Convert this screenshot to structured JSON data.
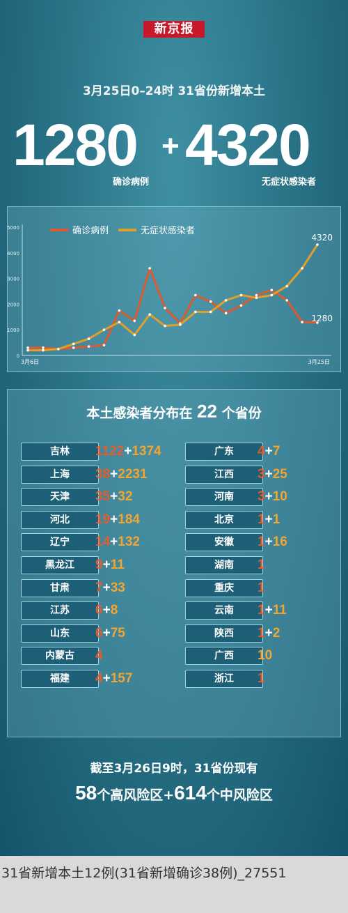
{
  "logo": "新京报",
  "headline": "3月25日0–24时   31省份新增本土",
  "summary": {
    "confirmed_value": "1280",
    "plus": "+",
    "asymptomatic_value": "4320",
    "confirmed_label": "确诊病例",
    "asymptomatic_label": "无症状感染者"
  },
  "chart_data": {
    "type": "line",
    "x_start_label": "3月6日",
    "x_end_label": "3月25日",
    "ylim": [
      0,
      5000
    ],
    "yticks": [
      "0",
      "1000",
      "2000",
      "3000",
      "4000",
      "5000"
    ],
    "legend": [
      "确诊病例",
      "无症状感染者"
    ],
    "legend_position": "top-left",
    "grid": false,
    "series": [
      {
        "name": "确诊病例",
        "color": "#dd5a2e",
        "values": [
          300,
          300,
          250,
          300,
          350,
          400,
          1750,
          1350,
          3400,
          1850,
          1250,
          2350,
          2100,
          1650,
          1950,
          2350,
          2550,
          2150,
          1300,
          1280
        ],
        "end_label": "1280"
      },
      {
        "name": "无症状感染者",
        "color": "#e0a028",
        "values": [
          200,
          200,
          250,
          450,
          650,
          1000,
          1300,
          800,
          1600,
          1150,
          1200,
          1700,
          1700,
          2150,
          2350,
          2250,
          2350,
          2700,
          3400,
          4320
        ],
        "end_label": "4320"
      }
    ]
  },
  "distribution": {
    "title_pre": "本土感染者分布在",
    "count": "22",
    "title_post": "个省份",
    "left": [
      {
        "name": "吉林",
        "c": "1122",
        "a": "1374"
      },
      {
        "name": "上海",
        "c": "38",
        "a": "2231"
      },
      {
        "name": "天津",
        "c": "35",
        "a": "32"
      },
      {
        "name": "河北",
        "c": "19",
        "a": "184"
      },
      {
        "name": "辽宁",
        "c": "14",
        "a": "132"
      },
      {
        "name": "黑龙江",
        "c": "9",
        "a": "11"
      },
      {
        "name": "甘肃",
        "c": "7",
        "a": "33"
      },
      {
        "name": "江苏",
        "c": "6",
        "a": "8"
      },
      {
        "name": "山东",
        "c": "6",
        "a": "75"
      },
      {
        "name": "内蒙古",
        "c": "4",
        "a": ""
      },
      {
        "name": "福建",
        "c": "4",
        "a": "157"
      }
    ],
    "right": [
      {
        "name": "广东",
        "c": "4",
        "a": "7"
      },
      {
        "name": "江西",
        "c": "3",
        "a": "25"
      },
      {
        "name": "河南",
        "c": "3",
        "a": "10"
      },
      {
        "name": "北京",
        "c": "1",
        "a": "1"
      },
      {
        "name": "安徽",
        "c": "1",
        "a": "16"
      },
      {
        "name": "湖南",
        "c": "1",
        "a": ""
      },
      {
        "name": "重庆",
        "c": "1",
        "a": ""
      },
      {
        "name": "云南",
        "c": "1",
        "a": "11"
      },
      {
        "name": "陕西",
        "c": "1",
        "a": "2"
      },
      {
        "name": "广西",
        "c": "",
        "a": "10"
      },
      {
        "name": "浙江",
        "c": "1",
        "a": ""
      }
    ]
  },
  "footer": {
    "line1": "截至3月26日9时，31省份现有",
    "high_risk": "58",
    "high_label": "个高风险区+",
    "mid_risk": "614",
    "mid_label": "个中风险区"
  },
  "caption": "31省新增本土12例(31省新增确诊38例)_27551"
}
